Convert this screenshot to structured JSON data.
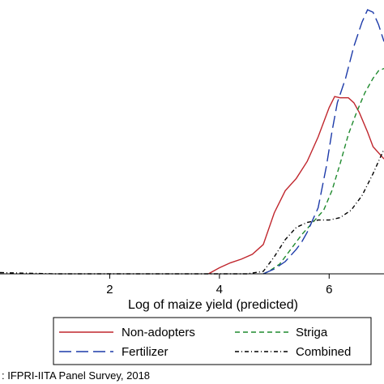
{
  "chart_data": {
    "type": "line",
    "title": "",
    "xlabel": "Log of maize yield (predicted)",
    "ylabel": "",
    "xlim": [
      0,
      7
    ],
    "ylim": [
      0,
      1.12
    ],
    "x_ticks": [
      {
        "value": 2,
        "label": "2"
      },
      {
        "value": 4,
        "label": "4"
      },
      {
        "value": 6,
        "label": "6"
      }
    ],
    "grid": false,
    "legend_position": "bottom",
    "series": [
      {
        "name": "Non-adopters",
        "color": "#c0262d",
        "dash": "solid",
        "points": [
          [
            3.8,
            0.0
          ],
          [
            4.0,
            0.025
          ],
          [
            4.2,
            0.045
          ],
          [
            4.4,
            0.06
          ],
          [
            4.6,
            0.08
          ],
          [
            4.8,
            0.12
          ],
          [
            5.0,
            0.25
          ],
          [
            5.2,
            0.34
          ],
          [
            5.4,
            0.39
          ],
          [
            5.6,
            0.46
          ],
          [
            5.8,
            0.56
          ],
          [
            6.0,
            0.68
          ],
          [
            6.1,
            0.725
          ],
          [
            6.2,
            0.72
          ],
          [
            6.35,
            0.72
          ],
          [
            6.45,
            0.7
          ],
          [
            6.55,
            0.66
          ],
          [
            6.7,
            0.58
          ],
          [
            6.8,
            0.52
          ],
          [
            7.0,
            0.47
          ]
        ]
      },
      {
        "name": "Striga",
        "color": "#1f8a2e",
        "dash": "6,4",
        "points": [
          [
            4.8,
            0.0
          ],
          [
            4.9,
            0.01
          ],
          [
            5.1,
            0.04
          ],
          [
            5.3,
            0.1
          ],
          [
            5.5,
            0.16
          ],
          [
            5.7,
            0.21
          ],
          [
            5.9,
            0.26
          ],
          [
            6.05,
            0.34
          ],
          [
            6.2,
            0.45
          ],
          [
            6.35,
            0.57
          ],
          [
            6.5,
            0.66
          ],
          [
            6.65,
            0.74
          ],
          [
            6.8,
            0.8
          ],
          [
            6.9,
            0.83
          ],
          [
            7.0,
            0.84
          ]
        ]
      },
      {
        "name": "Fertilizer",
        "color": "#1c3aa9",
        "dash": "15,6",
        "points": [
          [
            4.8,
            0.0
          ],
          [
            5.0,
            0.02
          ],
          [
            5.2,
            0.05
          ],
          [
            5.4,
            0.1
          ],
          [
            5.5,
            0.13
          ],
          [
            5.6,
            0.17
          ],
          [
            5.8,
            0.27
          ],
          [
            5.95,
            0.44
          ],
          [
            6.05,
            0.58
          ],
          [
            6.15,
            0.7
          ],
          [
            6.3,
            0.8
          ],
          [
            6.45,
            0.93
          ],
          [
            6.6,
            1.03
          ],
          [
            6.7,
            1.08
          ],
          [
            6.8,
            1.07
          ],
          [
            6.9,
            1.02
          ],
          [
            7.0,
            0.95
          ]
        ]
      },
      {
        "name": "Combined",
        "color": "#000000",
        "dash": "5,3,1,3",
        "points": [
          [
            0.0,
            0.005
          ],
          [
            1.0,
            0.0
          ],
          [
            2.0,
            0.0
          ],
          [
            3.0,
            0.0
          ],
          [
            4.0,
            0.0
          ],
          [
            4.5,
            0.0
          ],
          [
            4.8,
            0.01
          ],
          [
            5.0,
            0.07
          ],
          [
            5.2,
            0.14
          ],
          [
            5.4,
            0.19
          ],
          [
            5.6,
            0.21
          ],
          [
            5.8,
            0.22
          ],
          [
            6.0,
            0.22
          ],
          [
            6.2,
            0.23
          ],
          [
            6.4,
            0.26
          ],
          [
            6.6,
            0.32
          ],
          [
            6.8,
            0.41
          ],
          [
            7.0,
            0.51
          ]
        ]
      }
    ],
    "note": ":  IFPRI-IITA Panel Survey, 2018"
  }
}
